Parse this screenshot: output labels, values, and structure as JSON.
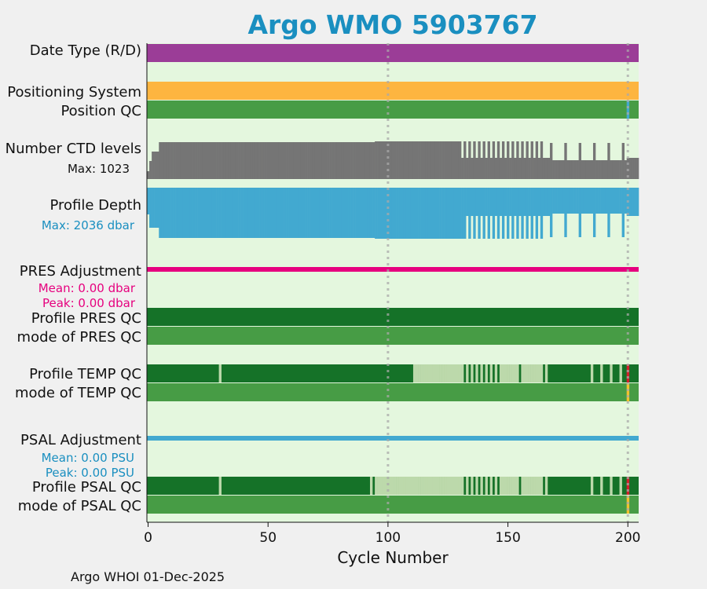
{
  "title": "Argo WMO 5903767",
  "footer": "Argo WHOI 01-Dec-2025",
  "colors": {
    "panel_bg": "#e4f7de",
    "date_type": "#9b3d97",
    "positioning": "#fdb540",
    "qc_good": "#479c45",
    "qc_dark": "#157228",
    "qc_light": "#bcd9ab",
    "qc_bad": "#d4202c",
    "qc_warn": "#f2c12e",
    "ctd": "#757575",
    "depth": "#42a9d0",
    "pres_adj": "#e6007e",
    "psal_adj": "#42a9d0",
    "cycle_marker": "#aaaaaa",
    "depth_label": "#1a8fc0",
    "pres_label": "#e6007e",
    "psal_label": "#1a8fc0"
  },
  "chart_data": {
    "type": "bar",
    "xlabel": "Cycle Number",
    "xlim": [
      -0.5,
      204.5
    ],
    "xticks": [
      0,
      50,
      100,
      150,
      200
    ],
    "marker_cycles": [
      100,
      200
    ],
    "rows": {
      "date_type": {
        "label": "Date Type (R/D)"
      },
      "positioning": {
        "label": "Positioning System"
      },
      "position_qc": {
        "label": "Position QC"
      },
      "ctd": {
        "label": "Number CTD levels",
        "max_label": "Max: 1023"
      },
      "depth": {
        "label": "Profile Depth",
        "max_label": "Max: 2036 dbar"
      },
      "pres_adj": {
        "label": "PRES Adjustment",
        "mean_label": "Mean: 0.00 dbar",
        "peak_label": "Peak: 0.00 dbar"
      },
      "pres_qc": {
        "label": "Profile PRES QC"
      },
      "pres_mode": {
        "label": "mode of PRES QC"
      },
      "temp_qc": {
        "label": "Profile TEMP QC"
      },
      "temp_mode": {
        "label": "mode of TEMP QC"
      },
      "psal_adj": {
        "label": "PSAL Adjustment",
        "mean_label": "Mean: 0.00 PSU",
        "peak_label": "Peak: 0.00 PSU"
      },
      "psal_qc": {
        "label": "Profile PSAL QC"
      },
      "psal_mode": {
        "label": "mode of PSAL QC"
      }
    }
  }
}
